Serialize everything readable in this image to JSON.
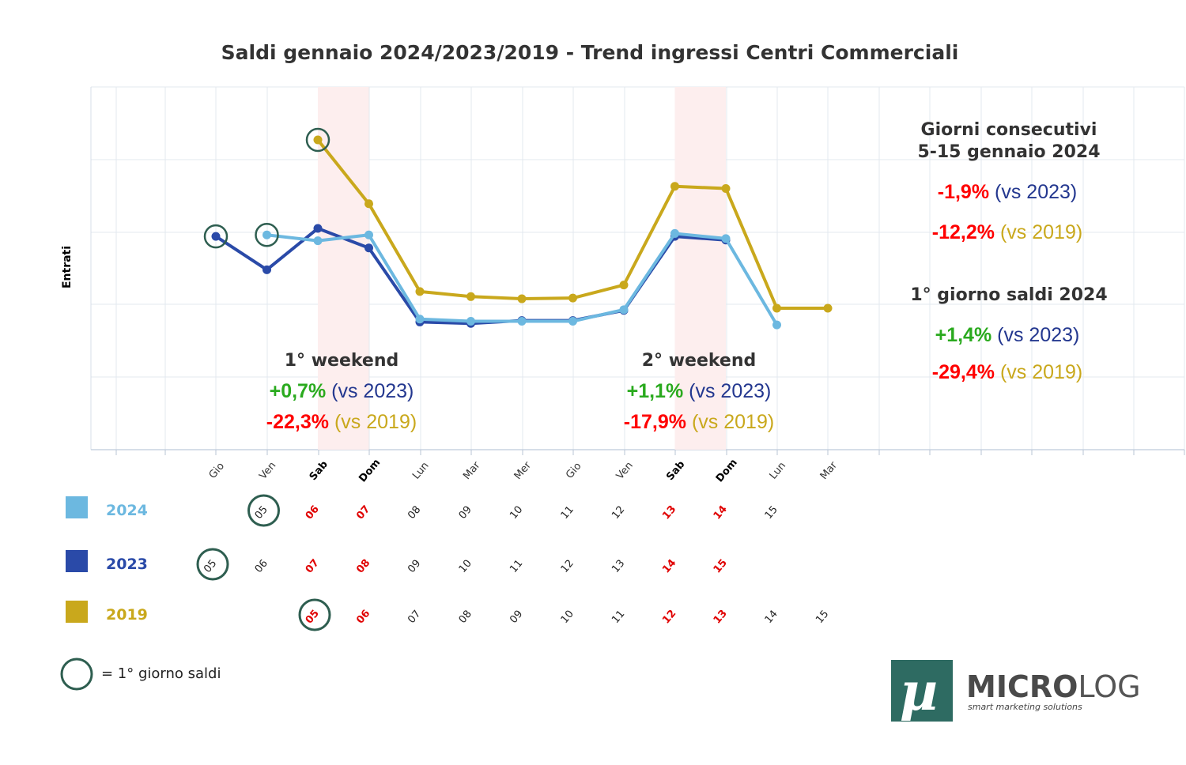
{
  "chart_data": {
    "type": "line",
    "title": "Saldi gennaio 2024/2023/2019 - Trend ingressi Centri Commerciali",
    "ylabel": "Entrati",
    "categories": [
      "Gio",
      "Ven",
      "Sab",
      "Dom",
      "Lun",
      "Mar",
      "Mer",
      "Gio",
      "Ven",
      "Sab",
      "Dom",
      "Lun",
      "Mar"
    ],
    "weekend_categories": [
      "Sab",
      "Dom"
    ],
    "grid": true,
    "ylim": [
      0,
      50
    ],
    "series": [
      {
        "name": "2024",
        "color": "#6cb8e0",
        "values": [
          null,
          29.6,
          28.8,
          29.6,
          18.0,
          17.7,
          17.7,
          17.7,
          19.3,
          29.8,
          29.1,
          17.2,
          null
        ],
        "dates": [
          "",
          "05",
          "06",
          "07",
          "08",
          "09",
          "10",
          "11",
          "12",
          "13",
          "14",
          "15",
          ""
        ],
        "first_sale_index": 1
      },
      {
        "name": "2023",
        "color": "#2a4aa8",
        "values": [
          29.4,
          24.8,
          30.5,
          27.8,
          17.6,
          17.4,
          17.8,
          17.8,
          19.2,
          29.4,
          28.9,
          null,
          null
        ],
        "dates": [
          "05",
          "06",
          "07",
          "08",
          "09",
          "10",
          "11",
          "12",
          "13",
          "14",
          "15",
          "",
          ""
        ],
        "first_sale_index": 0
      },
      {
        "name": "2019",
        "color": "#c9a81c",
        "values": [
          null,
          null,
          42.7,
          33.9,
          21.8,
          21.1,
          20.8,
          20.9,
          22.7,
          36.3,
          36.0,
          19.5,
          19.5
        ],
        "dates": [
          "",
          "",
          "05",
          "06",
          "07",
          "08",
          "09",
          "10",
          "11",
          "12",
          "13",
          "14",
          "15"
        ],
        "first_sale_index": 2
      }
    ]
  },
  "weekend1": {
    "title": "1° weekend",
    "v2023": "+0,7%",
    "vs2023": "(vs 2023)",
    "v2019": "-22,3%",
    "vs2019": "(vs 2019)"
  },
  "weekend2": {
    "title": "2° weekend",
    "v2023": "+1,1%",
    "vs2023": "(vs 2023)",
    "v2019": "-17,9%",
    "vs2019": "(vs 2019)"
  },
  "consecutive": {
    "title_line1": "Giorni consecutivi",
    "title_line2": "5-15 gennaio 2024",
    "v2023": "-1,9%",
    "vs2023": "(vs 2023)",
    "v2019": "-12,2%",
    "vs2019": "(vs 2019)"
  },
  "first_day": {
    "title": "1° giorno saldi 2024",
    "v2023": "+1,4%",
    "vs2023": "(vs 2023)",
    "v2019": "-29,4%",
    "vs2019": "(vs 2019)"
  },
  "circle_note": "= 1° giorno saldi",
  "brand": {
    "logo_glyph": "µ",
    "name_bold": "MICRO",
    "name_rest": "LOG",
    "tagline": "smart marketing solutions"
  },
  "colors": {
    "positive": "#2aaa1e",
    "negative": "#ff0000",
    "vs2023_text": "#23378f",
    "vs2019_text": "#c9a81c",
    "circle": "#2e5e50",
    "weekend_band": "#fdeeee",
    "logo_bg": "#2e6b62"
  }
}
